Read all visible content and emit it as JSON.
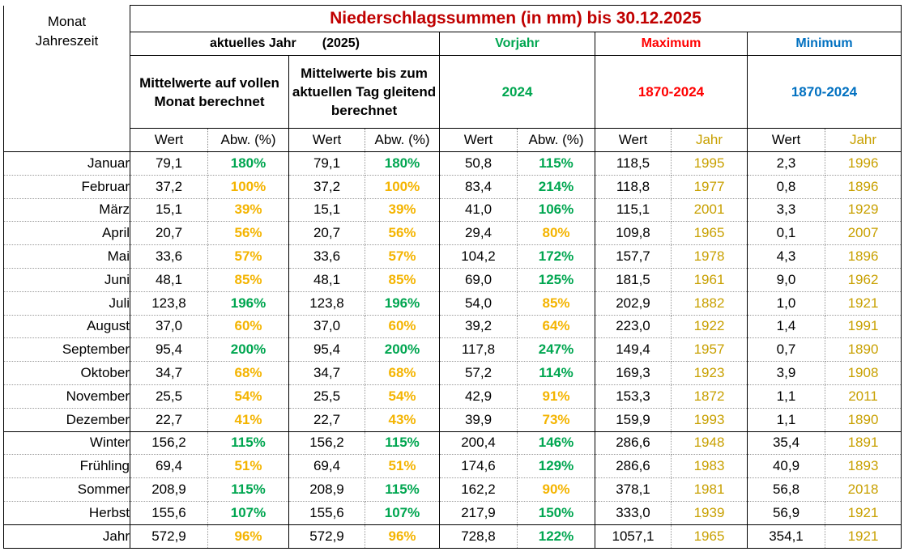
{
  "title": "Niederschlagssummen (in mm) bis 30.12.2025",
  "header": {
    "month_label": "Monat\nJahreszeit",
    "current_year_label": "aktuelles Jahr",
    "current_year_value": "(2025)",
    "prev_year_label": "Vorjahr",
    "max_label": "Maximum",
    "min_label": "Minimum",
    "desc_full_month": "Mittelwerte auf vollen Monat berechnet",
    "desc_to_day": "Mittelwerte bis zum aktuellen Tag gleitend berechnet",
    "prev_year_value": "2024",
    "max_range": "1870-2024",
    "min_range": "1870-2024",
    "col_wert": "Wert",
    "col_abw": "Abw. (%)",
    "col_jahr": "Jahr"
  },
  "colors": {
    "title": "#c00000",
    "green": "#00a650",
    "yellow": "#f4b400",
    "max": "#ff0000",
    "min": "#0070c0",
    "year": "#c8a000"
  },
  "rows": [
    {
      "month": "Januar",
      "w1": "79,1",
      "a1": "180%",
      "c1": "green",
      "w2": "79,1",
      "a2": "180%",
      "c2": "green",
      "w3": "50,8",
      "a3": "115%",
      "c3": "green",
      "max": "118,5",
      "maxy": "1995",
      "min": "2,3",
      "miny": "1996"
    },
    {
      "month": "Februar",
      "w1": "37,2",
      "a1": "100%",
      "c1": "yellow",
      "w2": "37,2",
      "a2": "100%",
      "c2": "yellow",
      "w3": "83,4",
      "a3": "214%",
      "c3": "green",
      "max": "118,8",
      "maxy": "1977",
      "min": "0,8",
      "miny": "1896"
    },
    {
      "month": "März",
      "w1": "15,1",
      "a1": "39%",
      "c1": "yellow",
      "w2": "15,1",
      "a2": "39%",
      "c2": "yellow",
      "w3": "41,0",
      "a3": "106%",
      "c3": "green",
      "max": "115,1",
      "maxy": "2001",
      "min": "3,3",
      "miny": "1929"
    },
    {
      "month": "April",
      "w1": "20,7",
      "a1": "56%",
      "c1": "yellow",
      "w2": "20,7",
      "a2": "56%",
      "c2": "yellow",
      "w3": "29,4",
      "a3": "80%",
      "c3": "yellow",
      "max": "109,8",
      "maxy": "1965",
      "min": "0,1",
      "miny": "2007"
    },
    {
      "month": "Mai",
      "w1": "33,6",
      "a1": "57%",
      "c1": "yellow",
      "w2": "33,6",
      "a2": "57%",
      "c2": "yellow",
      "w3": "104,2",
      "a3": "172%",
      "c3": "green",
      "max": "157,7",
      "maxy": "1978",
      "min": "4,3",
      "miny": "1896"
    },
    {
      "month": "Juni",
      "w1": "48,1",
      "a1": "85%",
      "c1": "yellow",
      "w2": "48,1",
      "a2": "85%",
      "c2": "yellow",
      "w3": "69,0",
      "a3": "125%",
      "c3": "green",
      "max": "181,5",
      "maxy": "1961",
      "min": "9,0",
      "miny": "1962"
    },
    {
      "month": "Juli",
      "w1": "123,8",
      "a1": "196%",
      "c1": "green",
      "w2": "123,8",
      "a2": "196%",
      "c2": "green",
      "w3": "54,0",
      "a3": "85%",
      "c3": "yellow",
      "max": "202,9",
      "maxy": "1882",
      "min": "1,0",
      "miny": "1921"
    },
    {
      "month": "August",
      "w1": "37,0",
      "a1": "60%",
      "c1": "yellow",
      "w2": "37,0",
      "a2": "60%",
      "c2": "yellow",
      "w3": "39,2",
      "a3": "64%",
      "c3": "yellow",
      "max": "223,0",
      "maxy": "1922",
      "min": "1,4",
      "miny": "1991"
    },
    {
      "month": "September",
      "w1": "95,4",
      "a1": "200%",
      "c1": "green",
      "w2": "95,4",
      "a2": "200%",
      "c2": "green",
      "w3": "117,8",
      "a3": "247%",
      "c3": "green",
      "max": "149,4",
      "maxy": "1957",
      "min": "0,7",
      "miny": "1890"
    },
    {
      "month": "Oktober",
      "w1": "34,7",
      "a1": "68%",
      "c1": "yellow",
      "w2": "34,7",
      "a2": "68%",
      "c2": "yellow",
      "w3": "57,2",
      "a3": "114%",
      "c3": "green",
      "max": "169,3",
      "maxy": "1923",
      "min": "3,9",
      "miny": "1908"
    },
    {
      "month": "November",
      "w1": "25,5",
      "a1": "54%",
      "c1": "yellow",
      "w2": "25,5",
      "a2": "54%",
      "c2": "yellow",
      "w3": "42,9",
      "a3": "91%",
      "c3": "yellow",
      "max": "153,3",
      "maxy": "1872",
      "min": "1,1",
      "miny": "2011"
    },
    {
      "month": "Dezember",
      "w1": "22,7",
      "a1": "41%",
      "c1": "yellow",
      "w2": "22,7",
      "a2": "43%",
      "c2": "yellow",
      "w3": "39,9",
      "a3": "73%",
      "c3": "yellow",
      "max": "159,9",
      "maxy": "1993",
      "min": "1,1",
      "miny": "1890"
    },
    {
      "month": "Winter",
      "w1": "156,2",
      "a1": "115%",
      "c1": "green",
      "w2": "156,2",
      "a2": "115%",
      "c2": "green",
      "w3": "200,4",
      "a3": "146%",
      "c3": "green",
      "max": "286,6",
      "maxy": "1948",
      "min": "35,4",
      "miny": "1891"
    },
    {
      "month": "Frühling",
      "w1": "69,4",
      "a1": "51%",
      "c1": "yellow",
      "w2": "69,4",
      "a2": "51%",
      "c2": "yellow",
      "w3": "174,6",
      "a3": "129%",
      "c3": "green",
      "max": "286,6",
      "maxy": "1983",
      "min": "40,9",
      "miny": "1893"
    },
    {
      "month": "Sommer",
      "w1": "208,9",
      "a1": "115%",
      "c1": "green",
      "w2": "208,9",
      "a2": "115%",
      "c2": "green",
      "w3": "162,2",
      "a3": "90%",
      "c3": "yellow",
      "max": "378,1",
      "maxy": "1981",
      "min": "56,8",
      "miny": "2018"
    },
    {
      "month": "Herbst",
      "w1": "155,6",
      "a1": "107%",
      "c1": "green",
      "w2": "155,6",
      "a2": "107%",
      "c2": "green",
      "w3": "217,9",
      "a3": "150%",
      "c3": "green",
      "max": "333,0",
      "maxy": "1939",
      "min": "56,9",
      "miny": "1921"
    },
    {
      "month": "Jahr",
      "w1": "572,9",
      "a1": "96%",
      "c1": "yellow",
      "w2": "572,9",
      "a2": "96%",
      "c2": "yellow",
      "w3": "728,8",
      "a3": "122%",
      "c3": "green",
      "max": "1057,1",
      "maxy": "1965",
      "min": "354,1",
      "miny": "1921"
    }
  ]
}
